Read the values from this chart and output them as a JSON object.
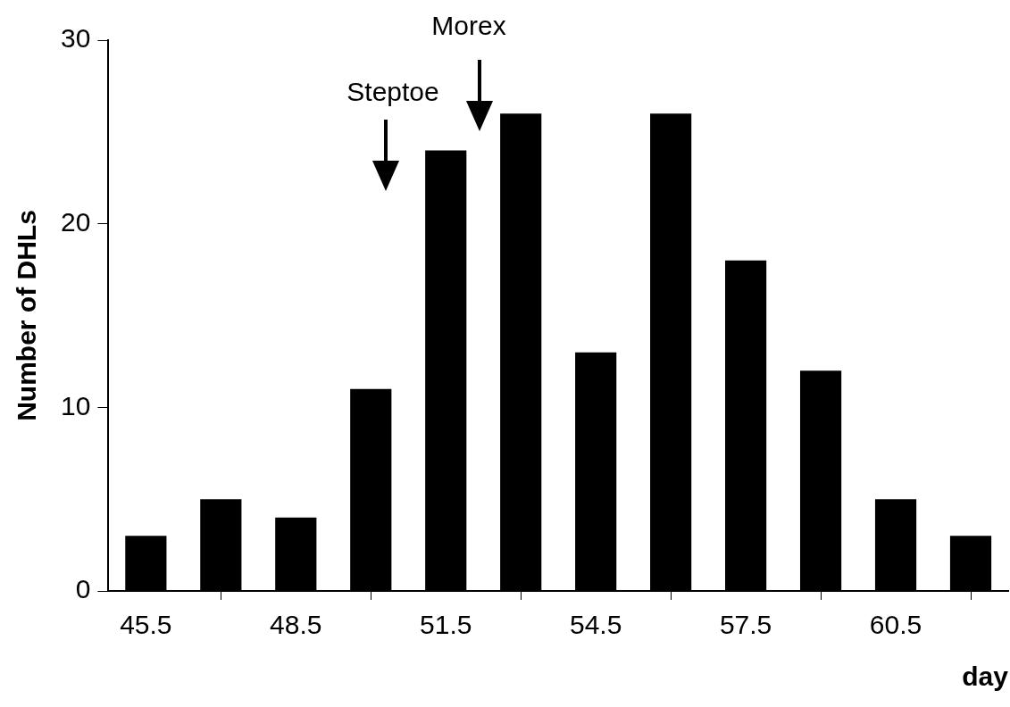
{
  "chart_data": {
    "type": "histogram",
    "xlabel": "day",
    "ylabel": "Number of DHLs",
    "bins": [
      44.75,
      46.25,
      47.75,
      49.25,
      50.75,
      52.25,
      53.75,
      55.25,
      56.75,
      58.25,
      59.75,
      61.25,
      62.75
    ],
    "values": [
      3,
      5,
      4,
      11,
      24,
      26,
      13,
      26,
      18,
      12,
      5,
      3
    ],
    "color": "#000000",
    "xlim": [
      44.75,
      62.75
    ],
    "xticks": [
      45.5,
      48.5,
      51.5,
      54.5,
      57.5,
      60.5
    ],
    "ylim": [
      0,
      30
    ],
    "yticks": [
      0,
      10,
      20,
      30
    ],
    "annotations": [
      "Steptoe",
      "Morex"
    ],
    "legend": false
  }
}
